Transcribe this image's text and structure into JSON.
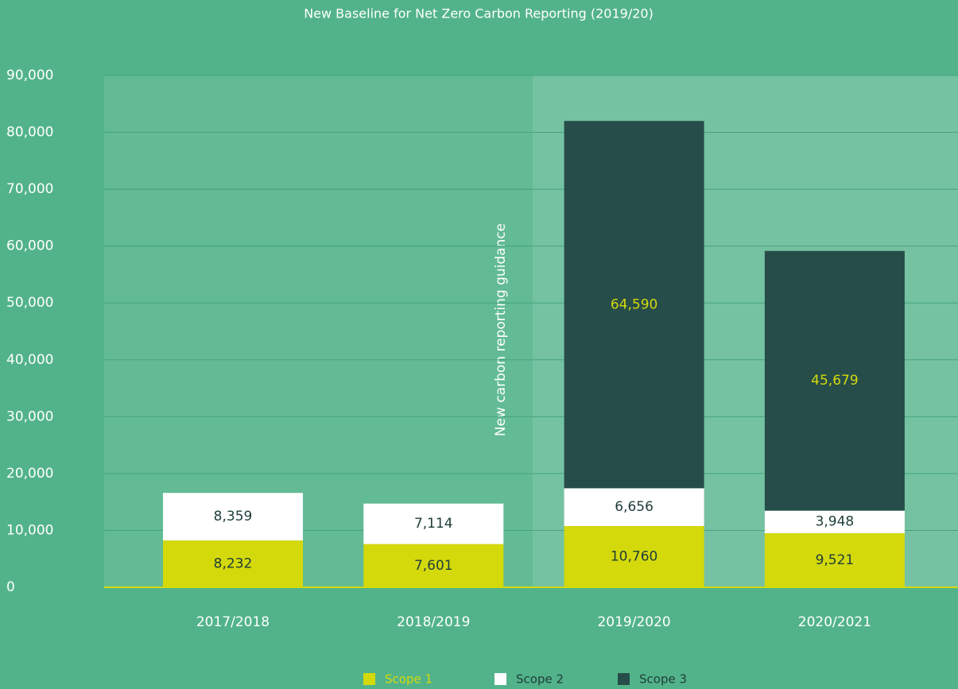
{
  "chart_data": {
    "type": "stacked_bar",
    "title": "New Baseline for Net Zero Carbon Reporting (2019/20)",
    "annotation": "New carbon reporting guidance",
    "categories": [
      "2017/2018",
      "2018/2019",
      "2019/2020",
      "2020/2021"
    ],
    "series": [
      {
        "name": "Scope 1",
        "color": "#d4d90b",
        "values": [
          8232,
          7601,
          10760,
          9521
        ],
        "value_labels": [
          "8,232",
          "7,601",
          "10,760",
          "9,521"
        ]
      },
      {
        "name": "Scope 2",
        "color": "#ffffff",
        "values": [
          8359,
          7114,
          6656,
          3948
        ],
        "value_labels": [
          "8,359",
          "7,114",
          "6,656",
          "3,948"
        ]
      },
      {
        "name": "Scope 3",
        "color": "#264d49",
        "values": [
          null,
          null,
          64590,
          45679
        ],
        "value_labels": [
          null,
          null,
          "64,590",
          "45,679"
        ]
      }
    ],
    "ylim": [
      0,
      90000
    ],
    "yticks": [
      0,
      {
        "value": 10000,
        "label": "10,000"
      },
      {
        "value": 20000,
        "label": "20,000"
      },
      {
        "value": 30000,
        "label": "30,000"
      },
      {
        "value": 40000,
        "label": "40,000"
      },
      {
        "value": 50000,
        "label": "50,000"
      },
      {
        "value": 60000,
        "label": "60,000"
      },
      {
        "value": 70000,
        "label": "70,000"
      },
      {
        "value": 80000,
        "label": "80,000"
      },
      {
        "value": 90000,
        "label": "90,000"
      }
    ],
    "grid": true
  }
}
